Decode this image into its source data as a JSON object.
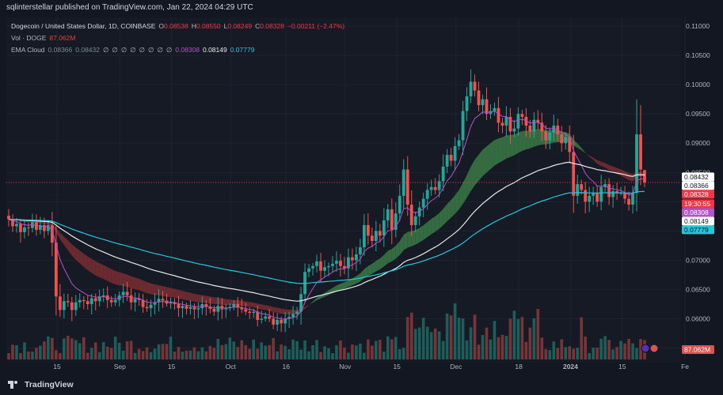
{
  "header": {
    "publish_text": "sqlinterstellar published on TradingView.com, Jan 22, 2024 04:29 UTC"
  },
  "legend": {
    "title": "Dogecoin / United States Dollar, 1D, COINBASE",
    "ohlc": [
      {
        "key": "O",
        "value": "0.08538"
      },
      {
        "key": "H",
        "value": "0.08550"
      },
      {
        "key": "L",
        "value": "0.08249"
      },
      {
        "key": "C",
        "value": "0.08328"
      },
      {
        "key": "",
        "value": "−0.00211 (−2.47%)"
      }
    ],
    "vol_label": "Vol · DOGE",
    "vol_value": "87.062M",
    "ema_label": "EMA Cloud",
    "ema_values": [
      "0.08366",
      "0.08432",
      "∅",
      "∅",
      "∅",
      "∅",
      "∅",
      "∅",
      "∅",
      "∅",
      "0.08308",
      "0.08149",
      "0.07779"
    ]
  },
  "footer": {
    "brand": "TradingView"
  },
  "colors": {
    "background": "#131722",
    "up": "#26a69a",
    "down": "#ef5350",
    "ema_fast": "#b452c8",
    "ema_mid": "#e8e8e8",
    "ema_slow": "#26c6da",
    "cloud_bull": "#3a7a46",
    "cloud_bear": "#7a2e33"
  },
  "chart_data": {
    "type": "candlestick",
    "symbol": "Dogecoin / United States Dollar, 1D, COINBASE",
    "y_axis": {
      "ylim": [
        0.0525,
        0.1115
      ],
      "ticks": [
        "0.11000",
        "0.10500",
        "0.10000",
        "0.09500",
        "0.09000",
        "0.08500",
        "0.08000",
        "0.07500",
        "0.07000",
        "0.06500",
        "0.06000",
        "0.05500"
      ]
    },
    "x_axis": {
      "ticks": [
        {
          "label": "15",
          "date": "2023-08-15"
        },
        {
          "label": "Sep",
          "date": "2023-09-01"
        },
        {
          "label": "15",
          "date": "2023-09-15"
        },
        {
          "label": "Oct",
          "date": "2023-10-01"
        },
        {
          "label": "16",
          "date": "2023-10-16"
        },
        {
          "label": "Nov",
          "date": "2023-11-01"
        },
        {
          "label": "15",
          "date": "2023-11-15"
        },
        {
          "label": "Dec",
          "date": "2023-12-01"
        },
        {
          "label": "18",
          "date": "2023-12-18"
        },
        {
          "label": "2024",
          "date": "2024-01-01"
        },
        {
          "label": "15",
          "date": "2024-01-15"
        },
        {
          "label": "Fe",
          "date": "2024-02-01"
        }
      ]
    },
    "price_labels": [
      {
        "value": "0.08432",
        "color": "#ffffff",
        "text_color": "#131722"
      },
      {
        "value": "0.08366",
        "color": "#ffffff",
        "text_color": "#131722"
      },
      {
        "value": "0.08328",
        "color": "#f23645",
        "text_color": "#ffffff"
      },
      {
        "value": "19:30:55",
        "color": "#f23645",
        "text_color": "#ffffff"
      },
      {
        "value": "0.08308",
        "color": "#b452c8",
        "text_color": "#ffffff"
      },
      {
        "value": "0.08149",
        "color": "#ffffff",
        "text_color": "#131722"
      },
      {
        "value": "0.07779",
        "color": "#26c6da",
        "text_color": "#131722"
      }
    ],
    "volume_label": "87.062M",
    "current_price": 0.08328,
    "series_close": [
      0.077,
      0.0758,
      0.0762,
      0.0748,
      0.0756,
      0.0755,
      0.0765,
      0.0752,
      0.076,
      0.075,
      0.076,
      0.073,
      0.0638,
      0.0615,
      0.063,
      0.0628,
      0.0615,
      0.0628,
      0.0632,
      0.063,
      0.0625,
      0.0635,
      0.063,
      0.0638,
      0.064,
      0.0632,
      0.0628,
      0.0632,
      0.064,
      0.0646,
      0.064,
      0.0628,
      0.0634,
      0.0632,
      0.062,
      0.0618,
      0.0624,
      0.0628,
      0.0634,
      0.0631,
      0.0626,
      0.0628,
      0.0625,
      0.0618,
      0.0622,
      0.0617,
      0.062,
      0.0616,
      0.0618,
      0.0625,
      0.062,
      0.0617,
      0.0612,
      0.0622,
      0.0616,
      0.0618,
      0.062,
      0.0625,
      0.0619,
      0.0616,
      0.0612,
      0.061,
      0.0612,
      0.0598,
      0.06,
      0.0604,
      0.06,
      0.059,
      0.0598,
      0.0592,
      0.06,
      0.0603,
      0.0608,
      0.0612,
      0.0642,
      0.068,
      0.0686,
      0.069,
      0.0698,
      0.0682,
      0.0688,
      0.069,
      0.0694,
      0.0699,
      0.069,
      0.0686,
      0.0705,
      0.07,
      0.071,
      0.0722,
      0.076,
      0.0742,
      0.0733,
      0.075,
      0.0742,
      0.0768,
      0.0787,
      0.0752,
      0.078,
      0.081,
      0.0855,
      0.0795,
      0.076,
      0.0775,
      0.079,
      0.0805,
      0.082,
      0.0825,
      0.082,
      0.0835,
      0.086,
      0.088,
      0.087,
      0.0895,
      0.0905,
      0.0955,
      0.098,
      0.1005,
      0.099,
      0.0965,
      0.0975,
      0.095,
      0.0955,
      0.096,
      0.0935,
      0.093,
      0.0945,
      0.092,
      0.0925,
      0.095,
      0.0945,
      0.093,
      0.092,
      0.094,
      0.0935,
      0.092,
      0.0905,
      0.0918,
      0.093,
      0.0915,
      0.09,
      0.091,
      0.0885,
      0.081,
      0.083,
      0.082,
      0.08,
      0.081,
      0.0815,
      0.08,
      0.0825,
      0.083,
      0.0808,
      0.0818,
      0.0815,
      0.0815,
      0.0805,
      0.0795,
      0.0815,
      0.0915,
      0.0855,
      0.0833
    ]
  }
}
